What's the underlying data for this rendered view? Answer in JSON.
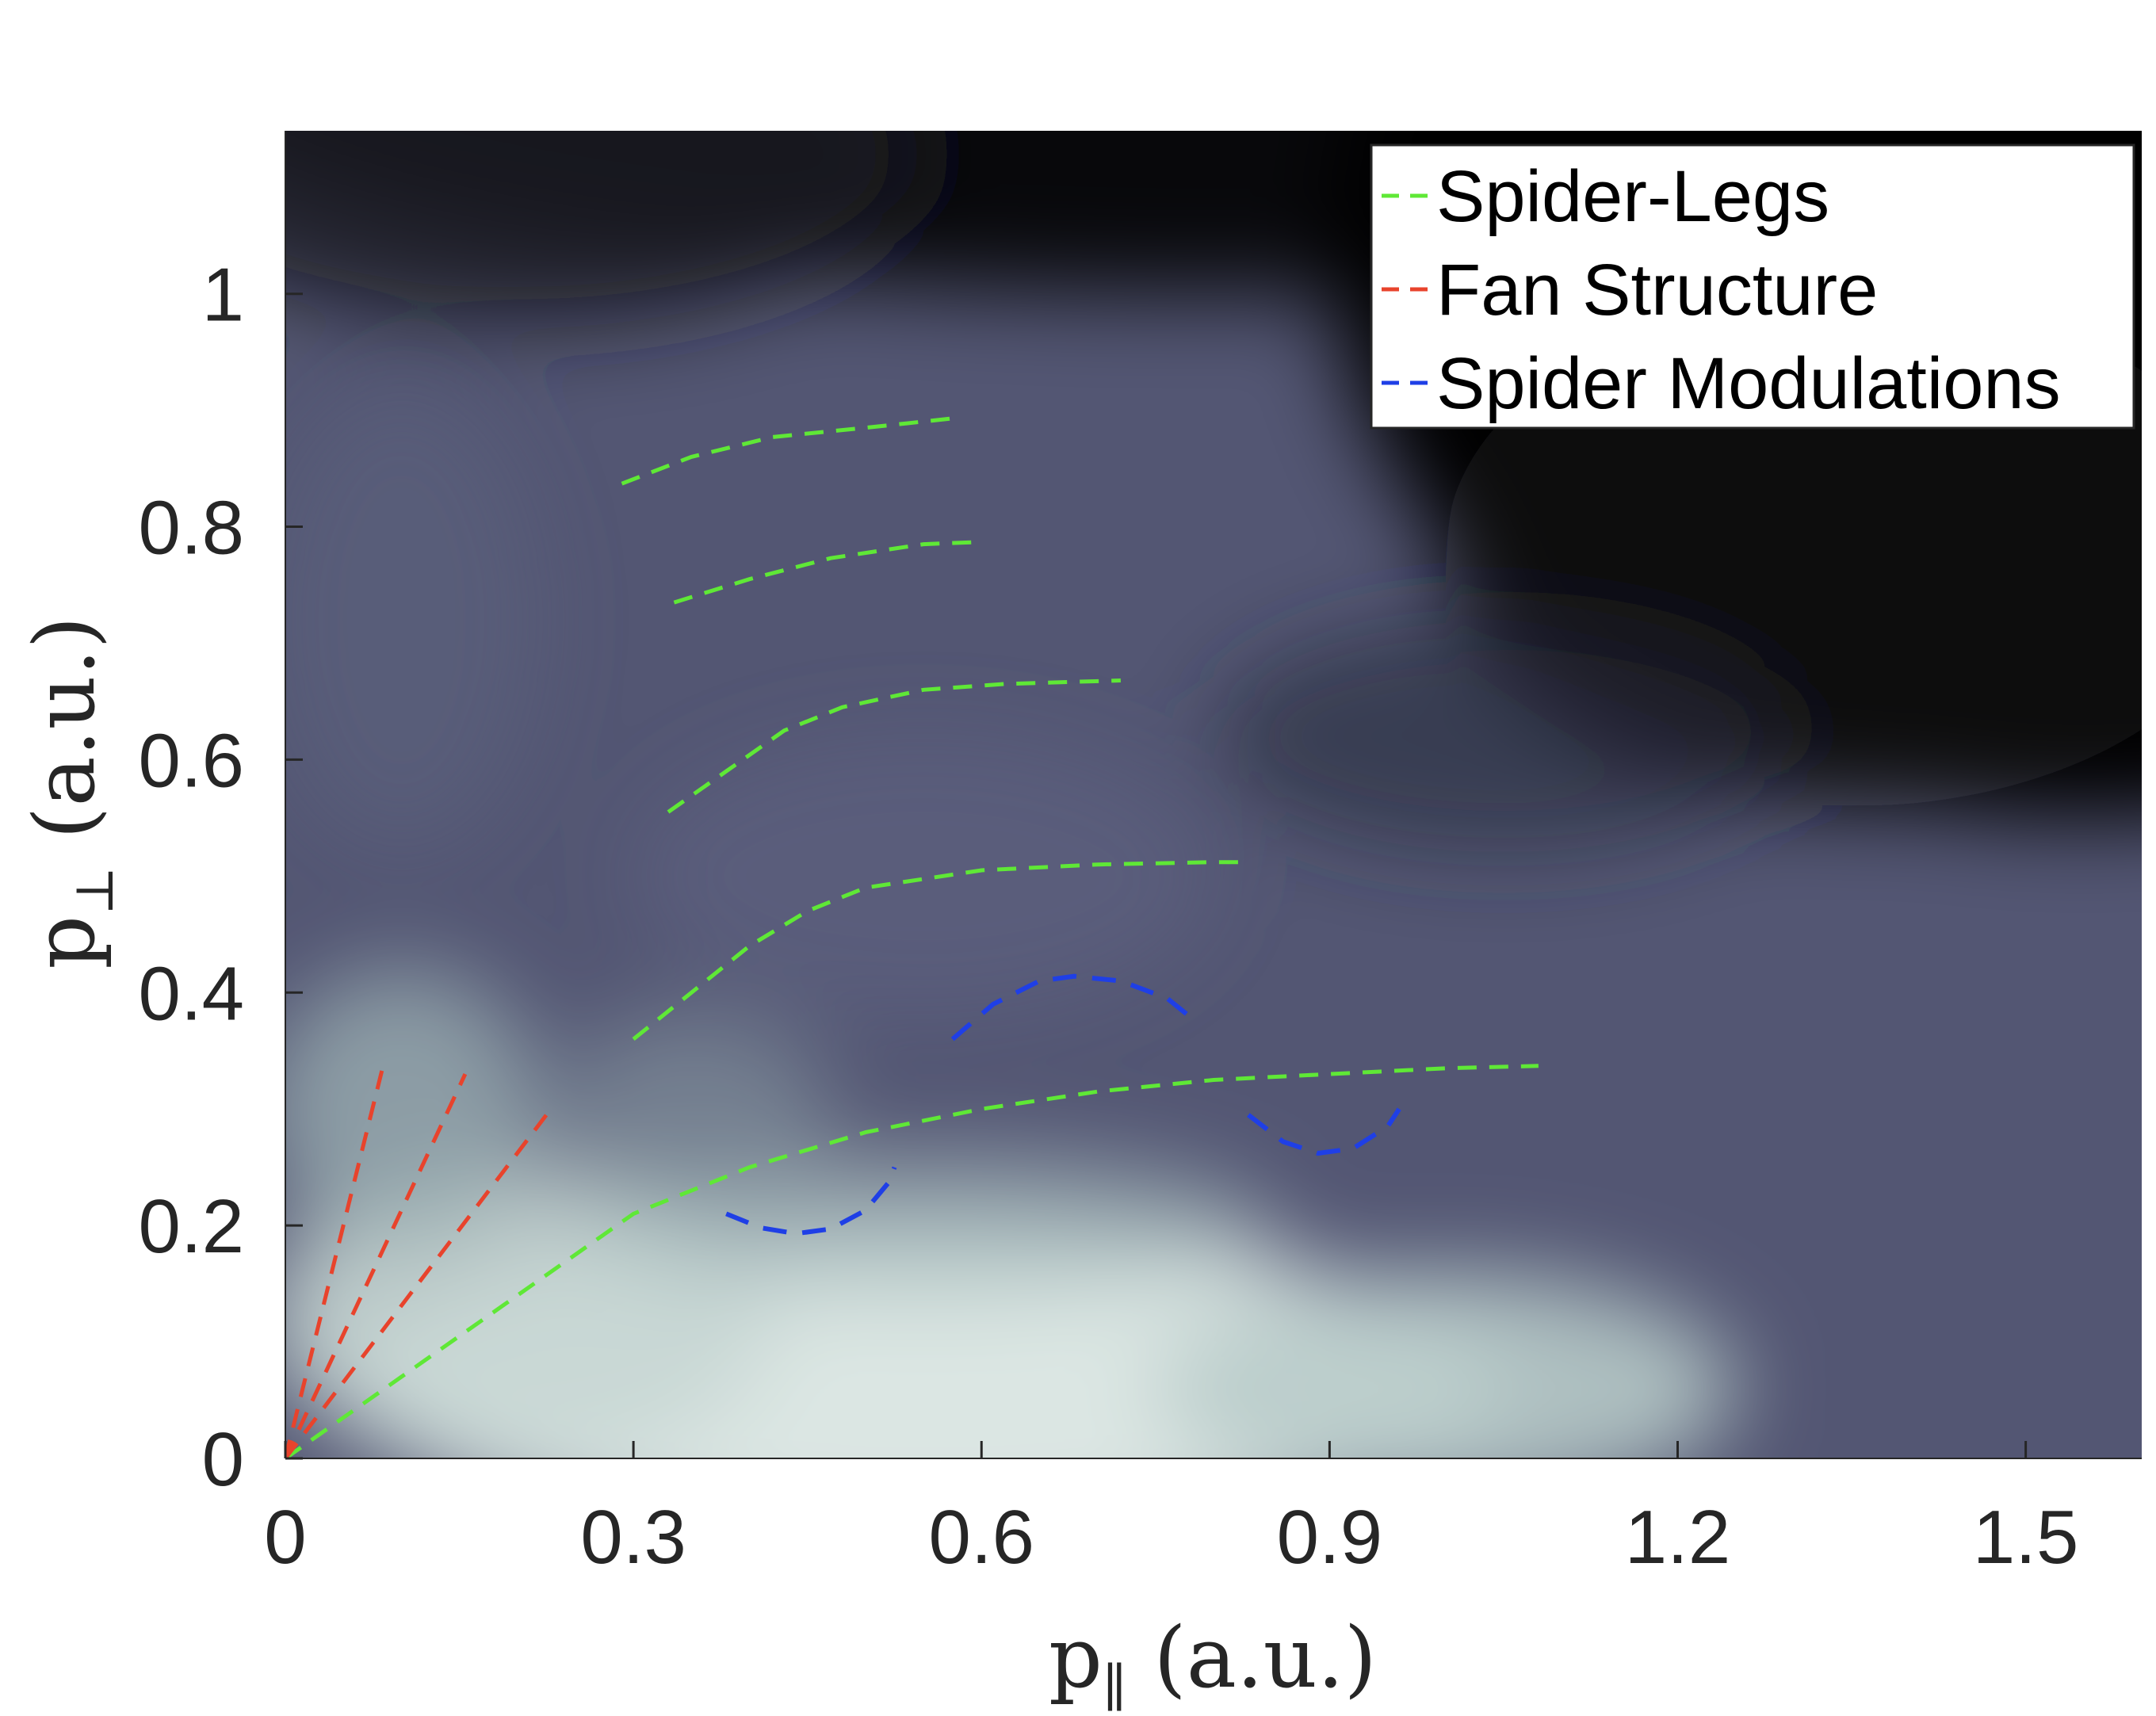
{
  "colors": {
    "spider_legs": "#5fe836",
    "fan_structure": "#e8432c",
    "spider_modulations": "#1f3fe6",
    "axis_text": "#262626",
    "heatmap_dark": "#030304",
    "heatmap_mid": "#535673",
    "heatmap_light": "#dbe6e3"
  },
  "chart_data": {
    "type": "heatmap",
    "background": "momentum-distribution intensity map, dark-to-pale bone colormap, no colorbar shown",
    "xlabel_main": "p",
    "xlabel_sub": "∥",
    "xlabel_unit": "(a.u.)",
    "ylabel_main": "p",
    "ylabel_sub": "⊥",
    "ylabel_unit": "(a.u.)",
    "xlim": [
      0,
      1.6
    ],
    "ylim": [
      0,
      1.14
    ],
    "xticks": [
      0,
      0.3,
      0.6,
      0.9,
      1.2,
      1.5
    ],
    "xtick_labels": [
      "0",
      "0.3",
      "0.6",
      "0.9",
      "1.2",
      "1.5"
    ],
    "yticks": [
      0,
      0.2,
      0.4,
      0.6,
      0.8,
      1
    ],
    "ytick_labels": [
      "0",
      "0.2",
      "0.4",
      "0.6",
      "0.8",
      "1"
    ],
    "grid": false,
    "legend_position": "top-right",
    "legend": [
      {
        "label": "Spider-Legs",
        "color_key": "spider_legs"
      },
      {
        "label": "Fan Structure",
        "color_key": "fan_structure"
      },
      {
        "label": "Spider Modulations",
        "color_key": "spider_modulations"
      }
    ],
    "series": [
      {
        "group": "Spider-Legs",
        "points": [
          [
            0.0,
            0.0
          ],
          [
            0.1,
            0.07
          ],
          [
            0.2,
            0.14
          ],
          [
            0.3,
            0.21
          ],
          [
            0.4,
            0.25
          ],
          [
            0.5,
            0.28
          ],
          [
            0.6,
            0.3
          ],
          [
            0.7,
            0.315
          ],
          [
            0.8,
            0.325
          ],
          [
            0.9,
            0.33
          ],
          [
            1.0,
            0.335
          ],
          [
            1.08,
            0.337
          ]
        ]
      },
      {
        "group": "Spider-Legs",
        "points": [
          [
            0.3,
            0.36
          ],
          [
            0.35,
            0.4
          ],
          [
            0.4,
            0.44
          ],
          [
            0.45,
            0.47
          ],
          [
            0.5,
            0.49
          ],
          [
            0.6,
            0.505
          ],
          [
            0.7,
            0.51
          ],
          [
            0.8,
            0.512
          ],
          [
            0.83,
            0.512
          ]
        ]
      },
      {
        "group": "Spider-Legs",
        "points": [
          [
            0.33,
            0.555
          ],
          [
            0.38,
            0.59
          ],
          [
            0.43,
            0.625
          ],
          [
            0.48,
            0.645
          ],
          [
            0.55,
            0.66
          ],
          [
            0.62,
            0.665
          ],
          [
            0.72,
            0.668
          ]
        ]
      },
      {
        "group": "Spider-Legs",
        "points": [
          [
            0.335,
            0.735
          ],
          [
            0.4,
            0.755
          ],
          [
            0.47,
            0.773
          ],
          [
            0.55,
            0.785
          ],
          [
            0.6,
            0.787
          ]
        ]
      },
      {
        "group": "Spider-Legs",
        "points": [
          [
            0.29,
            0.837
          ],
          [
            0.35,
            0.86
          ],
          [
            0.42,
            0.877
          ],
          [
            0.5,
            0.885
          ],
          [
            0.575,
            0.893
          ]
        ]
      },
      {
        "group": "Fan Structure",
        "points": [
          [
            0.0,
            0.0
          ],
          [
            0.085,
            0.34
          ]
        ]
      },
      {
        "group": "Fan Structure",
        "points": [
          [
            0.0,
            0.0
          ],
          [
            0.155,
            0.33
          ]
        ]
      },
      {
        "group": "Fan Structure",
        "points": [
          [
            0.0,
            0.0
          ],
          [
            0.225,
            0.295
          ]
        ]
      },
      {
        "group": "Spider Modulations",
        "points": [
          [
            0.38,
            0.21
          ],
          [
            0.41,
            0.198
          ],
          [
            0.44,
            0.193
          ],
          [
            0.47,
            0.197
          ],
          [
            0.5,
            0.213
          ],
          [
            0.52,
            0.237
          ],
          [
            0.525,
            0.25
          ]
        ]
      },
      {
        "group": "Spider Modulations",
        "points": [
          [
            0.575,
            0.36
          ],
          [
            0.61,
            0.39
          ],
          [
            0.65,
            0.41
          ],
          [
            0.68,
            0.414
          ],
          [
            0.72,
            0.41
          ],
          [
            0.76,
            0.395
          ],
          [
            0.785,
            0.375
          ]
        ]
      },
      {
        "group": "Spider Modulations",
        "points": [
          [
            0.83,
            0.295
          ],
          [
            0.86,
            0.272
          ],
          [
            0.89,
            0.262
          ],
          [
            0.92,
            0.266
          ],
          [
            0.95,
            0.285
          ],
          [
            0.96,
            0.3
          ]
        ]
      }
    ]
  }
}
